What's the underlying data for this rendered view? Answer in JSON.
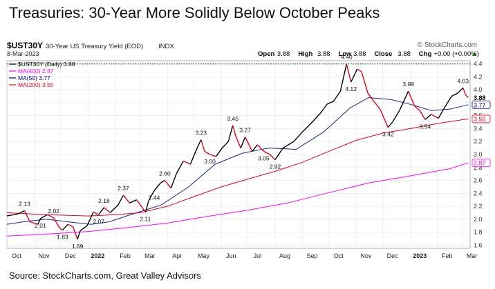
{
  "page": {
    "title": "Treasuries: 30-Year More Solidly Below October Peaks",
    "source": "Source: StockCharts.com, Great Valley Advisors"
  },
  "header": {
    "symbol": "$UST30Y",
    "description": "30-Year US Treasury Yield (EOD)",
    "exchange": "INDX",
    "date": "8-Mar-2023",
    "watermark": "© StockCharts.com",
    "ohlc": [
      {
        "label": "Open",
        "value": "3.88"
      },
      {
        "label": "High",
        "value": "3.88"
      },
      {
        "label": "Low",
        "value": "3.88"
      },
      {
        "label": "Close",
        "value": "3.88"
      },
      {
        "label": "Chg",
        "value": "+0.00 (+0.00%)"
      }
    ],
    "ohlc_suffix": "▲"
  },
  "legend": [
    {
      "text": "$UST30Y (Daily) 3.88",
      "color": "#000000"
    },
    {
      "text": "MA(400) 2.87",
      "color": "#ff00ff"
    },
    {
      "text": "MA(50) 3.77",
      "color": "#000080"
    },
    {
      "text": "MA(200) 3.55",
      "color": "#e0001b"
    }
  ],
  "colors": {
    "price_up": "#000000",
    "price_down": "#e0001b",
    "ma400": "#ff00ff",
    "ma50": "#1a237e",
    "ma200": "#e0001b",
    "peak_line": "#008000",
    "grid": "#e6e6e6"
  },
  "chart_data": {
    "type": "line",
    "x_axis": "date",
    "x_ticks": [
      "Oct",
      "Nov",
      "Dec",
      "2022",
      "Feb",
      "Mar",
      "Apr",
      "May",
      "Jun",
      "Jul",
      "Aug",
      "Sep",
      "Oct",
      "Nov",
      "Dec",
      "2023",
      "Feb",
      "Mar"
    ],
    "y_ticks": [
      1.6,
      1.8,
      2.0,
      2.2,
      2.4,
      2.6,
      2.8,
      3.0,
      3.2,
      3.4,
      3.6,
      3.8,
      4.0,
      4.2,
      4.4
    ],
    "ylim": [
      1.55,
      4.45
    ],
    "xlim": [
      "2021-10-01",
      "2023-03-10"
    ],
    "grid": true,
    "reference_lines": [
      {
        "y": 4.4,
        "style": "dotted",
        "color": "#008000"
      }
    ],
    "series": [
      {
        "name": "$UST30Y (Daily)",
        "style": "price",
        "points": [
          [
            "2021-10-01",
            2.05
          ],
          [
            "2021-10-13",
            2.08
          ],
          [
            "2021-10-21",
            2.13
          ],
          [
            "2021-10-27",
            1.96
          ],
          [
            "2021-11-05",
            1.92
          ],
          [
            "2021-11-08",
            2.01
          ],
          [
            "2021-11-16",
            2.07
          ],
          [
            "2021-11-23",
            2.02
          ],
          [
            "2021-11-30",
            1.86
          ],
          [
            "2021-12-03",
            1.83
          ],
          [
            "2021-12-09",
            1.92
          ],
          [
            "2021-12-15",
            1.88
          ],
          [
            "2021-12-20",
            1.69
          ],
          [
            "2021-12-23",
            1.82
          ],
          [
            "2021-12-31",
            1.9
          ],
          [
            "2022-01-07",
            2.11
          ],
          [
            "2022-01-13",
            2.07
          ],
          [
            "2022-01-19",
            2.18
          ],
          [
            "2022-01-26",
            2.1
          ],
          [
            "2022-02-04",
            2.22
          ],
          [
            "2022-02-10",
            2.37
          ],
          [
            "2022-02-17",
            2.25
          ],
          [
            "2022-02-25",
            2.3
          ],
          [
            "2022-03-07",
            2.11
          ],
          [
            "2022-03-11",
            2.3
          ],
          [
            "2022-03-17",
            2.44
          ],
          [
            "2022-03-24",
            2.56
          ],
          [
            "2022-03-29",
            2.6
          ],
          [
            "2022-04-05",
            2.48
          ],
          [
            "2022-04-11",
            2.7
          ],
          [
            "2022-04-19",
            2.9
          ],
          [
            "2022-04-27",
            2.85
          ],
          [
            "2022-05-03",
            3.05
          ],
          [
            "2022-05-09",
            3.23
          ],
          [
            "2022-05-13",
            3.05
          ],
          [
            "2022-05-19",
            3.0
          ],
          [
            "2022-05-26",
            2.97
          ],
          [
            "2022-06-02",
            3.1
          ],
          [
            "2022-06-09",
            3.2
          ],
          [
            "2022-06-14",
            3.45
          ],
          [
            "2022-06-17",
            3.3
          ],
          [
            "2022-06-23",
            3.1
          ],
          [
            "2022-06-28",
            3.27
          ],
          [
            "2022-07-06",
            3.05
          ],
          [
            "2022-07-12",
            3.15
          ],
          [
            "2022-07-19",
            3.05
          ],
          [
            "2022-07-26",
            3.0
          ],
          [
            "2022-08-01",
            2.92
          ],
          [
            "2022-08-10",
            3.1
          ],
          [
            "2022-08-22",
            3.2
          ],
          [
            "2022-09-01",
            3.35
          ],
          [
            "2022-09-12",
            3.5
          ],
          [
            "2022-09-22",
            3.65
          ],
          [
            "2022-09-29",
            3.78
          ],
          [
            "2022-10-06",
            3.82
          ],
          [
            "2022-10-14",
            3.98
          ],
          [
            "2022-10-21",
            4.4
          ],
          [
            "2022-10-26",
            4.12
          ],
          [
            "2022-11-02",
            4.32
          ],
          [
            "2022-11-07",
            4.28
          ],
          [
            "2022-11-14",
            3.95
          ],
          [
            "2022-11-21",
            3.82
          ],
          [
            "2022-11-28",
            3.7
          ],
          [
            "2022-12-07",
            3.42
          ],
          [
            "2022-12-12",
            3.5
          ],
          [
            "2022-12-20",
            3.68
          ],
          [
            "2022-12-30",
            3.98
          ],
          [
            "2023-01-06",
            3.75
          ],
          [
            "2023-01-12",
            3.68
          ],
          [
            "2023-01-18",
            3.54
          ],
          [
            "2023-01-25",
            3.62
          ],
          [
            "2023-02-02",
            3.56
          ],
          [
            "2023-02-10",
            3.75
          ],
          [
            "2023-02-17",
            3.9
          ],
          [
            "2023-02-24",
            3.95
          ],
          [
            "2023-03-02",
            4.03
          ],
          [
            "2023-03-05",
            3.92
          ],
          [
            "2023-03-08",
            3.88
          ]
        ]
      },
      {
        "name": "MA(400)",
        "points": [
          [
            "2021-10-01",
            1.74
          ],
          [
            "2021-11-15",
            1.77
          ],
          [
            "2022-01-01",
            1.81
          ],
          [
            "2022-02-15",
            1.87
          ],
          [
            "2022-04-01",
            1.94
          ],
          [
            "2022-05-15",
            2.04
          ],
          [
            "2022-07-01",
            2.14
          ],
          [
            "2022-08-15",
            2.25
          ],
          [
            "2022-10-01",
            2.41
          ],
          [
            "2022-11-15",
            2.56
          ],
          [
            "2023-01-01",
            2.67
          ],
          [
            "2023-02-15",
            2.78
          ],
          [
            "2023-03-08",
            2.87
          ]
        ]
      },
      {
        "name": "MA(50)",
        "points": [
          [
            "2021-10-01",
            1.92
          ],
          [
            "2021-10-20",
            1.96
          ],
          [
            "2021-11-15",
            2.0
          ],
          [
            "2021-12-15",
            1.95
          ],
          [
            "2022-01-05",
            1.92
          ],
          [
            "2022-01-25",
            1.96
          ],
          [
            "2022-02-25",
            2.1
          ],
          [
            "2022-03-25",
            2.22
          ],
          [
            "2022-04-25",
            2.5
          ],
          [
            "2022-05-25",
            2.85
          ],
          [
            "2022-06-25",
            3.02
          ],
          [
            "2022-07-25",
            3.1
          ],
          [
            "2022-08-25",
            3.08
          ],
          [
            "2022-09-25",
            3.35
          ],
          [
            "2022-10-25",
            3.72
          ],
          [
            "2022-11-15",
            3.88
          ],
          [
            "2022-12-10",
            3.85
          ],
          [
            "2022-12-31",
            3.78
          ],
          [
            "2023-01-25",
            3.68
          ],
          [
            "2023-02-15",
            3.7
          ],
          [
            "2023-03-08",
            3.77
          ]
        ]
      },
      {
        "name": "MA(200)",
        "points": [
          [
            "2021-10-01",
            2.1
          ],
          [
            "2021-11-15",
            2.07
          ],
          [
            "2022-01-01",
            2.05
          ],
          [
            "2022-02-01",
            2.07
          ],
          [
            "2022-03-01",
            2.1
          ],
          [
            "2022-04-01",
            2.2
          ],
          [
            "2022-05-01",
            2.35
          ],
          [
            "2022-06-01",
            2.5
          ],
          [
            "2022-07-01",
            2.62
          ],
          [
            "2022-08-01",
            2.74
          ],
          [
            "2022-09-01",
            2.88
          ],
          [
            "2022-10-01",
            3.05
          ],
          [
            "2022-11-01",
            3.22
          ],
          [
            "2022-12-01",
            3.33
          ],
          [
            "2023-01-01",
            3.4
          ],
          [
            "2023-02-01",
            3.48
          ],
          [
            "2023-03-08",
            3.55
          ]
        ]
      }
    ],
    "annotations": [
      {
        "x": "2021-10-21",
        "y": 2.13,
        "text": "2.13",
        "pos": "above"
      },
      {
        "x": "2021-11-08",
        "y": 2.01,
        "text": "2.01",
        "pos": "below"
      },
      {
        "x": "2021-11-23",
        "y": 2.02,
        "text": "2.02",
        "pos": "above"
      },
      {
        "x": "2021-12-03",
        "y": 1.83,
        "text": "1.83",
        "pos": "below"
      },
      {
        "x": "2021-12-20",
        "y": 1.69,
        "text": "1.69",
        "pos": "below"
      },
      {
        "x": "2022-01-13",
        "y": 2.07,
        "text": "2.07",
        "pos": "below"
      },
      {
        "x": "2022-01-19",
        "y": 2.18,
        "text": "2.18",
        "pos": "above"
      },
      {
        "x": "2022-02-10",
        "y": 2.37,
        "text": "2.37",
        "pos": "above"
      },
      {
        "x": "2022-03-07",
        "y": 2.11,
        "text": "2.11",
        "pos": "below"
      },
      {
        "x": "2022-03-17",
        "y": 2.44,
        "text": "2.44",
        "pos": "below"
      },
      {
        "x": "2022-03-29",
        "y": 2.6,
        "text": "2.60",
        "pos": "above"
      },
      {
        "x": "2022-05-09",
        "y": 3.23,
        "text": "3.23",
        "pos": "above"
      },
      {
        "x": "2022-05-19",
        "y": 3.0,
        "text": "3.00",
        "pos": "below"
      },
      {
        "x": "2022-06-14",
        "y": 3.45,
        "text": "3.45",
        "pos": "above"
      },
      {
        "x": "2022-06-28",
        "y": 3.27,
        "text": "3.27",
        "pos": "above"
      },
      {
        "x": "2022-07-19",
        "y": 3.05,
        "text": "3.05",
        "pos": "below"
      },
      {
        "x": "2022-08-01",
        "y": 2.92,
        "text": "2.92",
        "pos": "below"
      },
      {
        "x": "2022-10-21",
        "y": 4.4,
        "text": "4.40",
        "pos": "above"
      },
      {
        "x": "2022-10-26",
        "y": 4.12,
        "text": "4.12",
        "pos": "below"
      },
      {
        "x": "2022-12-07",
        "y": 3.42,
        "text": "3.42",
        "pos": "below"
      },
      {
        "x": "2022-12-30",
        "y": 3.98,
        "text": "3.98",
        "pos": "above"
      },
      {
        "x": "2023-01-18",
        "y": 3.54,
        "text": "3.54",
        "pos": "below"
      },
      {
        "x": "2023-03-02",
        "y": 4.03,
        "text": "4.03",
        "pos": "above"
      }
    ],
    "right_labels": [
      {
        "y": 3.88,
        "text": "3.88",
        "style": "bold",
        "color": "#000000"
      },
      {
        "y": 3.77,
        "text": "3.77",
        "style": "box",
        "color": "#000080"
      },
      {
        "y": 3.55,
        "text": "3.55",
        "style": "box",
        "color": "#e0001b"
      },
      {
        "y": 2.87,
        "text": "2.87",
        "style": "box",
        "color": "#ff00ff"
      }
    ]
  }
}
